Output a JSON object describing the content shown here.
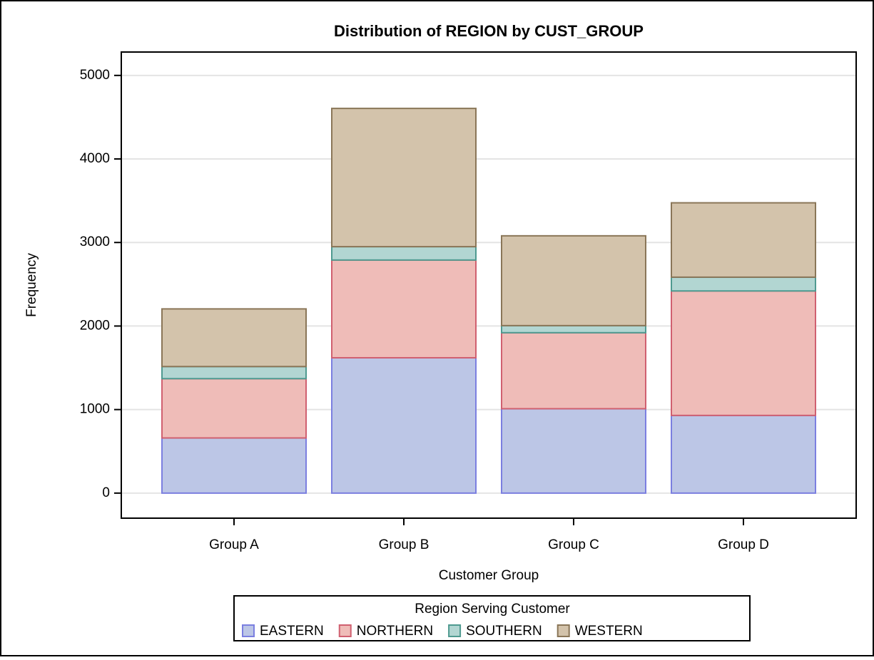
{
  "chart_data": {
    "type": "stacked_bar",
    "title": "Distribution of REGION by CUST_GROUP",
    "x_label": "Customer Group",
    "y_label": "Frequency",
    "legend_title": "Region Serving Customer",
    "categories": [
      "Group A",
      "Group B",
      "Group C",
      "Group D"
    ],
    "series": [
      {
        "name": "EASTERN",
        "color": "#bcc6e6",
        "edge": "#7b7fe0",
        "values": [
          660,
          1620,
          1010,
          930
        ]
      },
      {
        "name": "NORTHERN",
        "color": "#efbcb8",
        "edge": "#d06070",
        "values": [
          710,
          1170,
          910,
          1490
        ]
      },
      {
        "name": "SOUTHERN",
        "color": "#b2d6d2",
        "edge": "#4f9a90",
        "values": [
          145,
          160,
          85,
          165
        ]
      },
      {
        "name": "WESTERN",
        "color": "#d3c3ab",
        "edge": "#8a7658",
        "values": [
          690,
          1655,
          1075,
          890
        ]
      }
    ],
    "ylim": [
      -300,
      5280
    ],
    "yticks": [
      0,
      1000,
      2000,
      3000,
      4000,
      5000
    ],
    "grid": true,
    "legend": "bottom"
  }
}
